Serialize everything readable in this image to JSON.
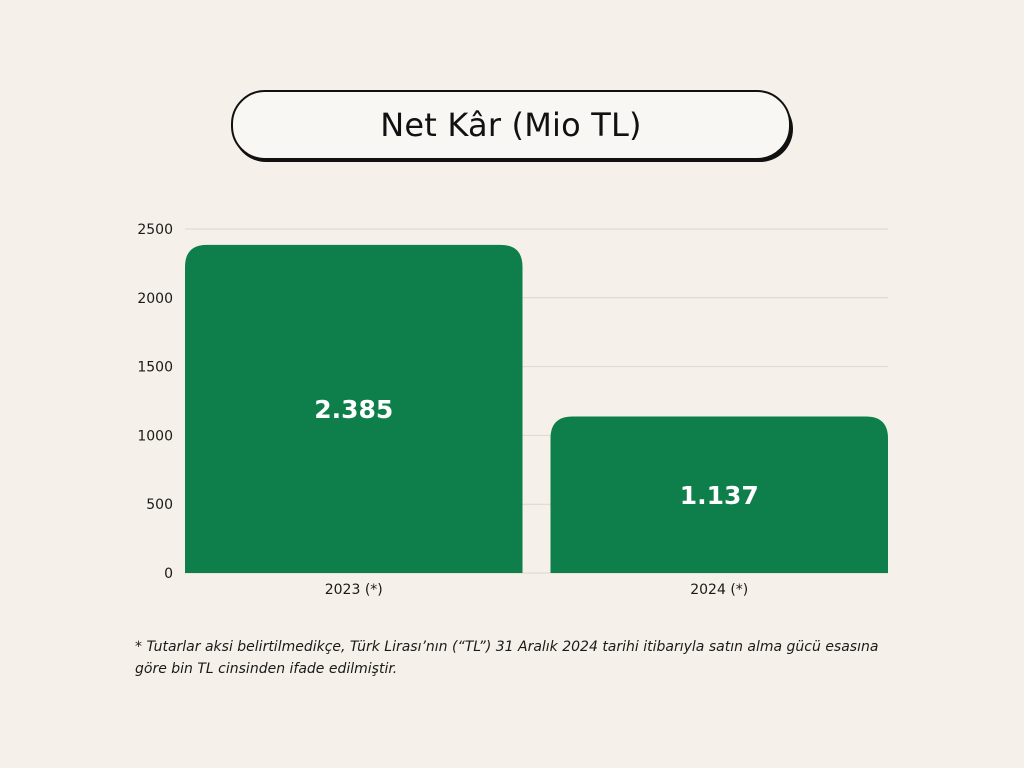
{
  "title": "Net Kâr (Mio TL)",
  "chart_data": {
    "type": "bar",
    "title": "Net Kâr (Mio TL)",
    "categories": [
      "2023 (*)",
      "2024 (*)"
    ],
    "values": [
      2385,
      1137
    ],
    "value_labels": [
      "2.385",
      "1.137"
    ],
    "ylim": [
      0,
      2500
    ],
    "yticks": [
      0,
      500,
      1000,
      1500,
      2000,
      2500
    ],
    "ytick_labels": [
      "0",
      "500",
      "1000",
      "1500",
      "2000",
      "2500"
    ],
    "xlabel": "",
    "ylabel": "",
    "grid": true,
    "legend": false,
    "bar_color": "#0e7f4b"
  },
  "colors": {
    "background": "#f5f1ea",
    "bar": "#0e7f4b",
    "grid": "#ddd6cc",
    "text": "#1a1a1a"
  },
  "footnote": "* Tutarlar aksi belirtilmedikçe, Türk Lirası’nın (“TL”) 31 Aralık 2024 tarihi itibarıyla satın alma gücü esasına göre bin TL cinsinden ifade edilmiştir."
}
